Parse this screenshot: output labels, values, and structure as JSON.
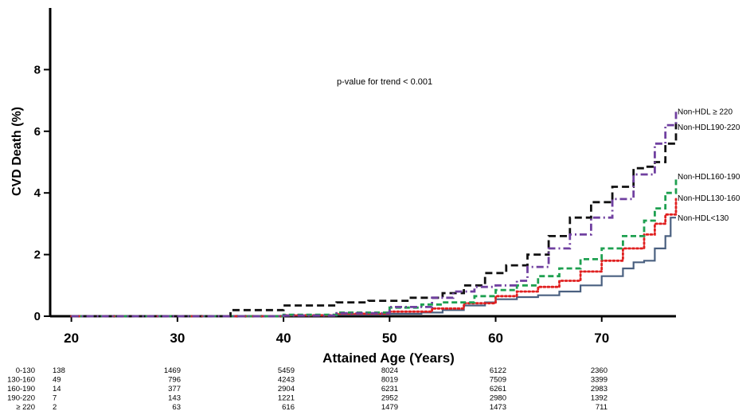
{
  "chart_data": {
    "type": "line",
    "title": "",
    "xlabel": "Attained Age (Years)",
    "ylabel": "CVD Death (%)",
    "xlim": [
      18,
      77
    ],
    "ylim": [
      0,
      10
    ],
    "xticks": [
      20,
      30,
      40,
      50,
      60,
      70
    ],
    "yticks": [
      0,
      2,
      4,
      6,
      8
    ],
    "grid": false,
    "annotation": "p-value for trend < 0.001",
    "series": [
      {
        "name": "Non-HDL<130",
        "color": "#4a6080",
        "style": "solid",
        "points": [
          [
            20,
            0
          ],
          [
            35,
            0
          ],
          [
            40,
            0.02
          ],
          [
            45,
            0.05
          ],
          [
            50,
            0.08
          ],
          [
            53,
            0.12
          ],
          [
            55,
            0.2
          ],
          [
            57,
            0.35
          ],
          [
            59,
            0.45
          ],
          [
            60,
            0.55
          ],
          [
            62,
            0.62
          ],
          [
            64,
            0.68
          ],
          [
            66,
            0.8
          ],
          [
            68,
            1.0
          ],
          [
            70,
            1.3
          ],
          [
            72,
            1.55
          ],
          [
            73,
            1.75
          ],
          [
            74,
            1.8
          ],
          [
            75,
            2.2
          ],
          [
            76,
            2.6
          ],
          [
            76.5,
            3.2
          ],
          [
            77,
            3.2
          ]
        ]
      },
      {
        "name": "Non-HDL130-160",
        "color": "#e02020",
        "style": "dotted",
        "points": [
          [
            20,
            0
          ],
          [
            35,
            0
          ],
          [
            40,
            0.03
          ],
          [
            45,
            0.08
          ],
          [
            50,
            0.15
          ],
          [
            54,
            0.25
          ],
          [
            57,
            0.42
          ],
          [
            60,
            0.65
          ],
          [
            62,
            0.8
          ],
          [
            64,
            0.95
          ],
          [
            66,
            1.15
          ],
          [
            68,
            1.45
          ],
          [
            70,
            1.8
          ],
          [
            72,
            2.2
          ],
          [
            74,
            2.65
          ],
          [
            75,
            3.0
          ],
          [
            76,
            3.3
          ],
          [
            77,
            3.8
          ]
        ]
      },
      {
        "name": "Non-HDL160-190",
        "color": "#1ea050",
        "style": "dashed",
        "points": [
          [
            20,
            0
          ],
          [
            35,
            0
          ],
          [
            40,
            0.05
          ],
          [
            45,
            0.12
          ],
          [
            50,
            0.28
          ],
          [
            53,
            0.38
          ],
          [
            55,
            0.45
          ],
          [
            58,
            0.65
          ],
          [
            60,
            0.85
          ],
          [
            62,
            1.0
          ],
          [
            64,
            1.3
          ],
          [
            66,
            1.55
          ],
          [
            68,
            1.85
          ],
          [
            70,
            2.2
          ],
          [
            72,
            2.6
          ],
          [
            74,
            3.1
          ],
          [
            75,
            3.5
          ],
          [
            76,
            4.0
          ],
          [
            77,
            4.5
          ]
        ]
      },
      {
        "name": "Non-HDL190-220",
        "color": "#111111",
        "style": "longdash",
        "points": [
          [
            20,
            0
          ],
          [
            34,
            0
          ],
          [
            35,
            0.2
          ],
          [
            38,
            0.2
          ],
          [
            40,
            0.35
          ],
          [
            43,
            0.35
          ],
          [
            45,
            0.45
          ],
          [
            48,
            0.5
          ],
          [
            52,
            0.6
          ],
          [
            55,
            0.75
          ],
          [
            57,
            1.0
          ],
          [
            59,
            1.4
          ],
          [
            61,
            1.65
          ],
          [
            63,
            2.0
          ],
          [
            65,
            2.6
          ],
          [
            67,
            3.2
          ],
          [
            69,
            3.7
          ],
          [
            71,
            4.2
          ],
          [
            73,
            4.8
          ],
          [
            74,
            4.85
          ],
          [
            75,
            5.0
          ],
          [
            76,
            5.6
          ],
          [
            77,
            6.3
          ]
        ]
      },
      {
        "name": "Non-HDL ≥ 220",
        "color": "#7040a0",
        "style": "dashdot",
        "points": [
          [
            20,
            0
          ],
          [
            36,
            0
          ],
          [
            40,
            0.02
          ],
          [
            45,
            0.1
          ],
          [
            50,
            0.3
          ],
          [
            54,
            0.6
          ],
          [
            56,
            0.8
          ],
          [
            58,
            0.95
          ],
          [
            60,
            1.0
          ],
          [
            62,
            1.15
          ],
          [
            63,
            1.6
          ],
          [
            65,
            2.2
          ],
          [
            67,
            2.65
          ],
          [
            69,
            3.2
          ],
          [
            71,
            3.8
          ],
          [
            73,
            4.6
          ],
          [
            75,
            5.6
          ],
          [
            76,
            6.2
          ],
          [
            77,
            6.7
          ]
        ]
      }
    ],
    "risk_table": {
      "rows": [
        {
          "label": "0-130",
          "counts": [
            "138",
            "1469",
            "5459",
            "8024",
            "6122",
            "2360"
          ]
        },
        {
          "label": "130-160",
          "counts": [
            "49",
            "796",
            "4243",
            "8019",
            "7509",
            "3399"
          ]
        },
        {
          "label": "160-190",
          "counts": [
            "14",
            "377",
            "2904",
            "6231",
            "6261",
            "2983"
          ]
        },
        {
          "label": "190-220",
          "counts": [
            "7",
            "143",
            "1221",
            "2952",
            "2980",
            "1392"
          ]
        },
        {
          "label": "≥ 220",
          "counts": [
            "2",
            "63",
            "616",
            "1479",
            "1473",
            "711"
          ]
        }
      ]
    }
  }
}
